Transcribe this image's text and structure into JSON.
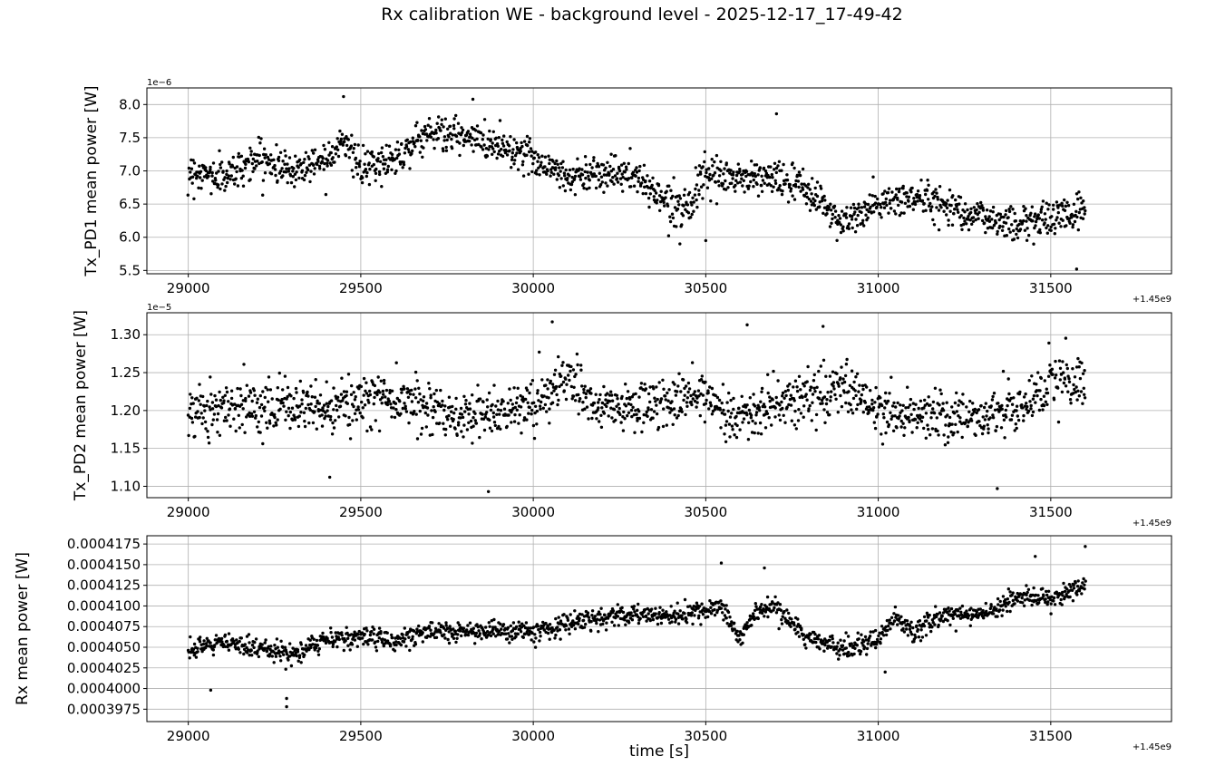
{
  "figure": {
    "title": "Rx calibration WE - background level - 2025-12-17_17-49-42",
    "xlabel": "time [s]"
  },
  "chart_data": [
    {
      "type": "scatter",
      "ylabel": "Tx_PD1 mean power [W]",
      "y_scale_label": "1e−6",
      "x_offset_label": "+1.45e9",
      "xlim": [
        28880,
        31850
      ],
      "ylim": [
        5.45,
        8.25
      ],
      "xticks": [
        29000,
        29500,
        30000,
        30500,
        31000,
        31500
      ],
      "xtick_labels": [
        "29000",
        "29500",
        "30000",
        "30500",
        "31000",
        "31500"
      ],
      "yticks": [
        5.5,
        6.0,
        6.5,
        7.0,
        7.5,
        8.0
      ],
      "ytick_labels": [
        "5.5",
        "6.0",
        "6.5",
        "7.0",
        "7.5",
        "8.0"
      ],
      "grid": true,
      "marker_color": "#000000",
      "x_range": [
        29000,
        31600
      ],
      "series": [
        {
          "x": [
            29000,
            29100,
            29200,
            29300,
            29400,
            29450,
            29500,
            29600,
            29700,
            29800,
            29900,
            30000,
            30100,
            30200,
            30300,
            30400,
            30450,
            30500,
            30600,
            30700,
            30800,
            30900,
            31000,
            31100,
            31200,
            31300,
            31400,
            31500,
            31600
          ],
          "y": [
            7.0,
            6.9,
            7.2,
            7.0,
            7.2,
            7.5,
            7.0,
            7.2,
            7.6,
            7.5,
            7.4,
            7.2,
            6.9,
            7.0,
            6.9,
            6.5,
            6.5,
            6.9,
            6.9,
            6.9,
            6.7,
            6.2,
            6.5,
            6.6,
            6.5,
            6.3,
            6.2,
            6.3,
            6.4
          ],
          "spread": 0.24
        }
      ],
      "outliers": [
        {
          "x": 29450,
          "y": 8.12
        },
        {
          "x": 29825,
          "y": 8.08
        },
        {
          "x": 30705,
          "y": 7.86
        },
        {
          "x": 31575,
          "y": 5.52
        },
        {
          "x": 30500,
          "y": 5.95
        },
        {
          "x": 30425,
          "y": 5.9
        }
      ]
    },
    {
      "type": "scatter",
      "ylabel": "Tx_PD2 mean power [W]",
      "y_scale_label": "1e−5",
      "x_offset_label": "+1.45e9",
      "xlim": [
        28880,
        31850
      ],
      "ylim": [
        1.085,
        1.329
      ],
      "xticks": [
        29000,
        29500,
        30000,
        30500,
        31000,
        31500
      ],
      "xtick_labels": [
        "29000",
        "29500",
        "30000",
        "30500",
        "31000",
        "31500"
      ],
      "yticks": [
        1.1,
        1.15,
        1.2,
        1.25,
        1.3
      ],
      "ytick_labels": [
        "1.10",
        "1.15",
        "1.20",
        "1.25",
        "1.30"
      ],
      "grid": true,
      "marker_color": "#000000",
      "x_range": [
        29000,
        31600
      ],
      "series": [
        {
          "x": [
            29000,
            29200,
            29400,
            29600,
            29800,
            30000,
            30100,
            30200,
            30400,
            30500,
            30600,
            30800,
            30900,
            31000,
            31200,
            31400,
            31500,
            31600
          ],
          "y": [
            1.2,
            1.21,
            1.2,
            1.22,
            1.19,
            1.21,
            1.24,
            1.2,
            1.21,
            1.22,
            1.19,
            1.22,
            1.23,
            1.2,
            1.19,
            1.2,
            1.24,
            1.23
          ],
          "spread": 0.03
        }
      ],
      "outliers": [
        {
          "x": 30055,
          "y": 1.317
        },
        {
          "x": 30620,
          "y": 1.313
        },
        {
          "x": 30840,
          "y": 1.311
        },
        {
          "x": 29870,
          "y": 1.093
        },
        {
          "x": 31345,
          "y": 1.097
        },
        {
          "x": 29410,
          "y": 1.112
        }
      ]
    },
    {
      "type": "scatter",
      "ylabel": "Rx mean power [W]",
      "y_scale_label": "",
      "x_offset_label": "+1.45e9",
      "xlim": [
        28880,
        31850
      ],
      "ylim": [
        0.000396,
        0.0004185
      ],
      "xticks": [
        29000,
        29500,
        30000,
        30500,
        31000,
        31500
      ],
      "xtick_labels": [
        "29000",
        "29500",
        "30000",
        "30500",
        "31000",
        "31500"
      ],
      "yticks": [
        0.0003975,
        0.0004,
        0.0004025,
        0.000405,
        0.0004075,
        0.00041,
        0.0004125,
        0.000415,
        0.0004175
      ],
      "ytick_labels": [
        "0.0003975",
        "0.0004000",
        "0.0004025",
        "0.0004050",
        "0.0004075",
        "0.0004100",
        "0.0004125",
        "0.0004150",
        "0.0004175"
      ],
      "grid": true,
      "marker_color": "#000000",
      "x_range": [
        29000,
        31600
      ],
      "series": [
        {
          "x": [
            29000,
            29100,
            29200,
            29300,
            29400,
            29500,
            29600,
            29700,
            29800,
            29900,
            30000,
            30100,
            30200,
            30300,
            30400,
            30500,
            30550,
            30600,
            30650,
            30700,
            30800,
            30900,
            31000,
            31050,
            31100,
            31200,
            31300,
            31400,
            31500,
            31600
          ],
          "y": [
            0.0004045,
            0.0004055,
            0.000405,
            0.000404,
            0.000406,
            0.0004063,
            0.0004058,
            0.000407,
            0.0004068,
            0.000407,
            0.0004068,
            0.0004078,
            0.0004085,
            0.000409,
            0.0004088,
            0.0004092,
            0.0004098,
            0.000406,
            0.0004095,
            0.0004098,
            0.0004058,
            0.000405,
            0.0004058,
            0.0004085,
            0.000407,
            0.000409,
            0.0004088,
            0.0004112,
            0.000411,
            0.0004125
          ],
          "spread": 1.1e-06
        }
      ],
      "outliers": [
        {
          "x": 29285,
          "y": 0.0003978
        },
        {
          "x": 29285,
          "y": 0.0003988
        },
        {
          "x": 29065,
          "y": 0.0003998
        },
        {
          "x": 31600,
          "y": 0.0004172
        },
        {
          "x": 31455,
          "y": 0.000416
        },
        {
          "x": 30545,
          "y": 0.0004152
        },
        {
          "x": 30670,
          "y": 0.0004146
        },
        {
          "x": 31020,
          "y": 0.000402
        }
      ]
    }
  ]
}
